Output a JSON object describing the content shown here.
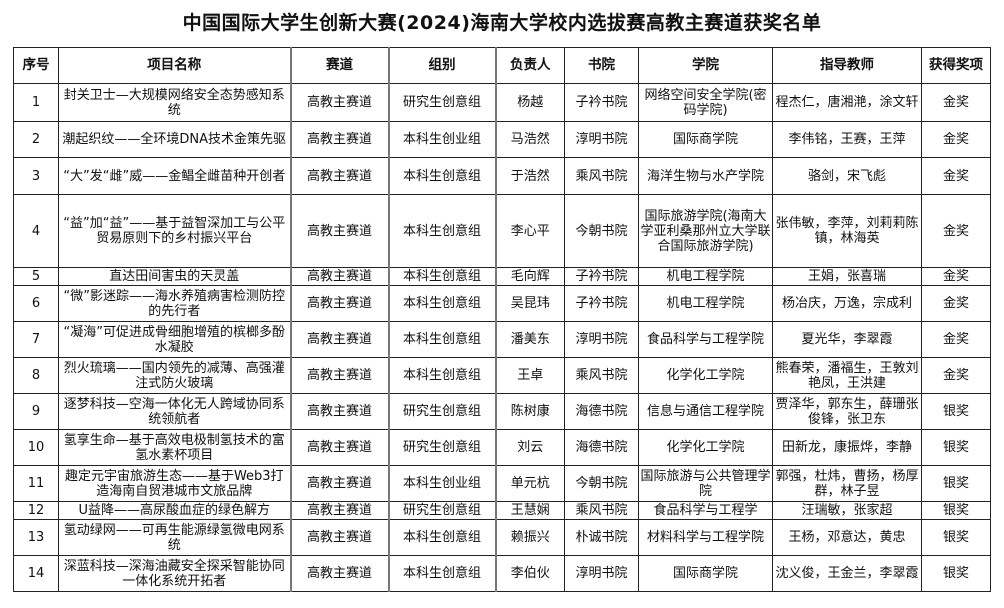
{
  "title": "中国国际大学生创新大赛(2024)海南大学校内选拔赛高教主赛道获奖名单",
  "headers": [
    "序号",
    "项目名称",
    "赛道",
    "组别",
    "负责人",
    "书院",
    "学院",
    "指导教师",
    "获得奖项"
  ],
  "rows": [
    [
      "1",
      "封关卫士—大规模网络安全态势感知系统",
      "高教主赛道",
      "研究生创意组",
      "杨越",
      "子衿书院",
      "网络空间安全学院(密码学院)",
      "程杰仁，唐湘滟，涂文轩",
      "金奖"
    ],
    [
      "2",
      "潮起织纹——全环境DNA技术金策先驱",
      "高教主赛道",
      "本科生创业组",
      "马浩然",
      "淳明书院",
      "国际商学院",
      "李伟铭，王赛，王萍",
      "金奖"
    ],
    [
      "3",
      "“大”发“雌”威——金鲳全雌苗种开创者",
      "高教主赛道",
      "本科生创意组",
      "于浩然",
      "乘风书院",
      "海洋生物与水产学院",
      "骆剑，宋飞彪",
      "金奖"
    ],
    [
      "4",
      "“益”加“益”——基于益智深加工与公平贸易原则下的乡村振兴平台",
      "高教主赛道",
      "本科生创意组",
      "李心平",
      "今朝书院",
      "国际旅游学院(海南大学亚利桑那州立大学联合国际旅游学院)",
      "张伟敏，李萍，刘莉莉陈镇，林海英",
      "金奖"
    ],
    [
      "5",
      "直达田间害虫的天灵盖",
      "高教主赛道",
      "本科生创意组",
      "毛向辉",
      "子衿书院",
      "机电工程学院",
      "王娟，张喜瑞",
      "金奖"
    ],
    [
      "6",
      "“微”影迷踪——海水养殖病害检测防控的先行者",
      "高教主赛道",
      "本科生创意组",
      "吴昆玮",
      "子衿书院",
      "机电工程学院",
      "杨冶庆，万逸，宗成利",
      "金奖"
    ],
    [
      "7",
      "“凝海”可促进成骨细胞增殖的槟榔多酚水凝胶",
      "高教主赛道",
      "本科生创意组",
      "潘美东",
      "淳明书院",
      "食品科学与工程学院",
      "夏光华，李翠霞",
      "金奖"
    ],
    [
      "8",
      "烈火琉璃——国内领先的减薄、高强灌注式防火玻璃",
      "高教主赛道",
      "本科生创意组",
      "王卓",
      "乘风书院",
      "化学化工学院",
      "熊春荣，潘福生，王敦刘艳凤，王洪建",
      "金奖"
    ],
    [
      "9",
      "逐梦科技—空海一体化无人跨域协同系统领航者",
      "高教主赛道",
      "研究生创意组",
      "陈树康",
      "海德书院",
      "信息与通信工程学院",
      "贾泽华，郭东生，薛珊张俊锋，张卫东",
      "银奖"
    ],
    [
      "10",
      "氢享生命—基于高效电极制氢技术的富氢水素杯项目",
      "高教主赛道",
      "研究生创意组",
      "刘云",
      "海德书院",
      "化学化工学院",
      "田新龙，康振烨，李静",
      "银奖"
    ],
    [
      "11",
      "趣定元宇宙旅游生态——基于Web3打造海南自贸港城市文旅品牌",
      "高教主赛道",
      "本科生创业组",
      "单元杭",
      "今朝书院",
      "国际旅游与公共管理学院",
      "郭强，杜炜，曹扬，杨厚群，林子昱",
      "银奖"
    ],
    [
      "12",
      "U益降——高尿酸血症的绿色解方",
      "高教主赛道",
      "研究生创意组",
      "王慧娴",
      "乘风书院",
      "食品科学与工程学",
      "汪瑞敏，张家超",
      "银奖"
    ],
    [
      "13",
      "氢动绿网——可再生能源绿氢微电网系统",
      "高教主赛道",
      "本科生创意组",
      "赖振兴",
      "朴诚书院",
      "材料科学与工程学院",
      "王杨，邓意达，黄忠",
      "银奖"
    ],
    [
      "14",
      "深蓝科技—深海油藏安全探采智能协同一体化系统开拓者",
      "高教主赛道",
      "本科生创意组",
      "李伯伙",
      "淳明书院",
      "国际商学院",
      "沈义俊，王金兰，李翠霞",
      "银奖"
    ]
  ]
}
